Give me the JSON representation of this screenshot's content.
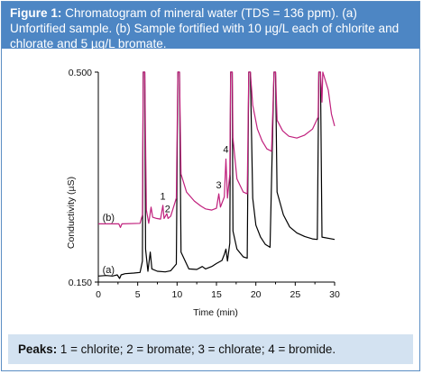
{
  "caption": {
    "label": "Figure 1:",
    "text": " Chromatogram of mineral water (TDS = 136 ppm). (a) Unfortified sample. (b) Sample fortified with 10 µg/L each of chlorite and chlorate and 5 µg/L bromate."
  },
  "footer": {
    "label": "Peaks:",
    "text": " 1 = chlorite; 2 = bromate; 3 = chlorate; 4 = bromide."
  },
  "chart_data": {
    "type": "line",
    "title": "",
    "xlabel": "Time (min)",
    "ylabel": "Conductivity (µS)",
    "xlim": [
      0,
      30
    ],
    "ylim": [
      0.15,
      0.5
    ],
    "x_ticks": [
      0,
      5,
      10,
      15,
      20,
      25,
      30
    ],
    "y_ticks": [
      {
        "value": 0.15,
        "label": "0.150"
      },
      {
        "value": 0.5,
        "label": "0.500"
      }
    ],
    "grid": false,
    "series": [
      {
        "name": "(a)",
        "color": "#000000",
        "points": [
          [
            0,
            0.16
          ],
          [
            1.0,
            0.161
          ],
          [
            1.8,
            0.16
          ],
          [
            2.4,
            0.162
          ],
          [
            2.7,
            0.156
          ],
          [
            2.9,
            0.162
          ],
          [
            3.4,
            0.164
          ],
          [
            4.5,
            0.165
          ],
          [
            5.3,
            0.166
          ],
          [
            5.6,
            0.185
          ],
          [
            5.7,
            0.5
          ],
          [
            5.9,
            0.5
          ],
          [
            6.0,
            0.205
          ],
          [
            6.3,
            0.168
          ],
          [
            6.6,
            0.2
          ],
          [
            6.8,
            0.172
          ],
          [
            7.5,
            0.168
          ],
          [
            8.5,
            0.167
          ],
          [
            9.2,
            0.169
          ],
          [
            9.9,
            0.18
          ],
          [
            10.1,
            0.5
          ],
          [
            10.3,
            0.5
          ],
          [
            10.5,
            0.2
          ],
          [
            11.5,
            0.172
          ],
          [
            12.5,
            0.171
          ],
          [
            13.2,
            0.176
          ],
          [
            13.6,
            0.172
          ],
          [
            14.4,
            0.176
          ],
          [
            15.0,
            0.181
          ],
          [
            15.7,
            0.186
          ],
          [
            16.0,
            0.196
          ],
          [
            16.2,
            0.205
          ],
          [
            16.4,
            0.185
          ],
          [
            16.7,
            0.215
          ],
          [
            16.8,
            0.5
          ],
          [
            17.0,
            0.5
          ],
          [
            17.1,
            0.235
          ],
          [
            17.6,
            0.205
          ],
          [
            18.4,
            0.192
          ],
          [
            18.9,
            0.19
          ],
          [
            19.1,
            0.5
          ],
          [
            19.3,
            0.5
          ],
          [
            19.6,
            0.29
          ],
          [
            20.0,
            0.245
          ],
          [
            20.6,
            0.225
          ],
          [
            21.2,
            0.213
          ],
          [
            21.8,
            0.208
          ],
          [
            22.3,
            0.5
          ],
          [
            22.5,
            0.5
          ],
          [
            22.7,
            0.3
          ],
          [
            23.5,
            0.262
          ],
          [
            24.3,
            0.242
          ],
          [
            25.2,
            0.232
          ],
          [
            26.2,
            0.226
          ],
          [
            27.2,
            0.222
          ],
          [
            27.8,
            0.221
          ],
          [
            28.0,
            0.5
          ],
          [
            28.2,
            0.5
          ],
          [
            28.4,
            0.225
          ],
          [
            30,
            0.221
          ]
        ]
      },
      {
        "name": "(b)",
        "color": "#c0207d",
        "points": [
          [
            0,
            0.247
          ],
          [
            2.6,
            0.247
          ],
          [
            2.8,
            0.241
          ],
          [
            3.0,
            0.247
          ],
          [
            5.3,
            0.248
          ],
          [
            5.6,
            0.262
          ],
          [
            5.7,
            0.5
          ],
          [
            5.9,
            0.5
          ],
          [
            6.1,
            0.27
          ],
          [
            6.4,
            0.248
          ],
          [
            6.7,
            0.275
          ],
          [
            6.9,
            0.258
          ],
          [
            7.4,
            0.256
          ],
          [
            7.9,
            0.255
          ],
          [
            8.2,
            0.278
          ],
          [
            8.35,
            0.256
          ],
          [
            8.7,
            0.264
          ],
          [
            8.85,
            0.256
          ],
          [
            9.2,
            0.26
          ],
          [
            9.9,
            0.29
          ],
          [
            10.1,
            0.5
          ],
          [
            10.3,
            0.5
          ],
          [
            10.5,
            0.33
          ],
          [
            11.2,
            0.3
          ],
          [
            12.2,
            0.285
          ],
          [
            13.0,
            0.277
          ],
          [
            13.6,
            0.272
          ],
          [
            14.4,
            0.27
          ],
          [
            15.0,
            0.273
          ],
          [
            15.3,
            0.297
          ],
          [
            15.5,
            0.275
          ],
          [
            16.0,
            0.292
          ],
          [
            16.2,
            0.355
          ],
          [
            16.4,
            0.29
          ],
          [
            16.7,
            0.33
          ],
          [
            16.8,
            0.5
          ],
          [
            17.0,
            0.5
          ],
          [
            17.1,
            0.39
          ],
          [
            17.6,
            0.322
          ],
          [
            18.4,
            0.3
          ],
          [
            18.9,
            0.297
          ],
          [
            19.1,
            0.5
          ],
          [
            19.3,
            0.5
          ],
          [
            19.6,
            0.445
          ],
          [
            20.2,
            0.405
          ],
          [
            20.8,
            0.385
          ],
          [
            21.4,
            0.372
          ],
          [
            22.0,
            0.368
          ],
          [
            22.3,
            0.5
          ],
          [
            22.5,
            0.5
          ],
          [
            22.7,
            0.42
          ],
          [
            23.4,
            0.402
          ],
          [
            24.2,
            0.393
          ],
          [
            25.2,
            0.39
          ],
          [
            26.2,
            0.395
          ],
          [
            27.2,
            0.405
          ],
          [
            27.9,
            0.425
          ],
          [
            28.0,
            0.5
          ],
          [
            28.2,
            0.5
          ],
          [
            28.4,
            0.45
          ],
          [
            28.5,
            0.5
          ],
          [
            29.2,
            0.47
          ],
          [
            29.6,
            0.43
          ],
          [
            30,
            0.41
          ]
        ]
      }
    ],
    "series_labels": [
      {
        "text": "(a)",
        "x": 1.3,
        "y": 0.165
      },
      {
        "text": "(b)",
        "x": 1.3,
        "y": 0.252
      }
    ],
    "annotations": [
      {
        "text": "1",
        "x": 8.2,
        "y": 0.283
      },
      {
        "text": "2",
        "x": 8.8,
        "y": 0.262
      },
      {
        "text": "3",
        "x": 15.3,
        "y": 0.302
      },
      {
        "text": "4",
        "x": 16.2,
        "y": 0.361
      }
    ]
  }
}
